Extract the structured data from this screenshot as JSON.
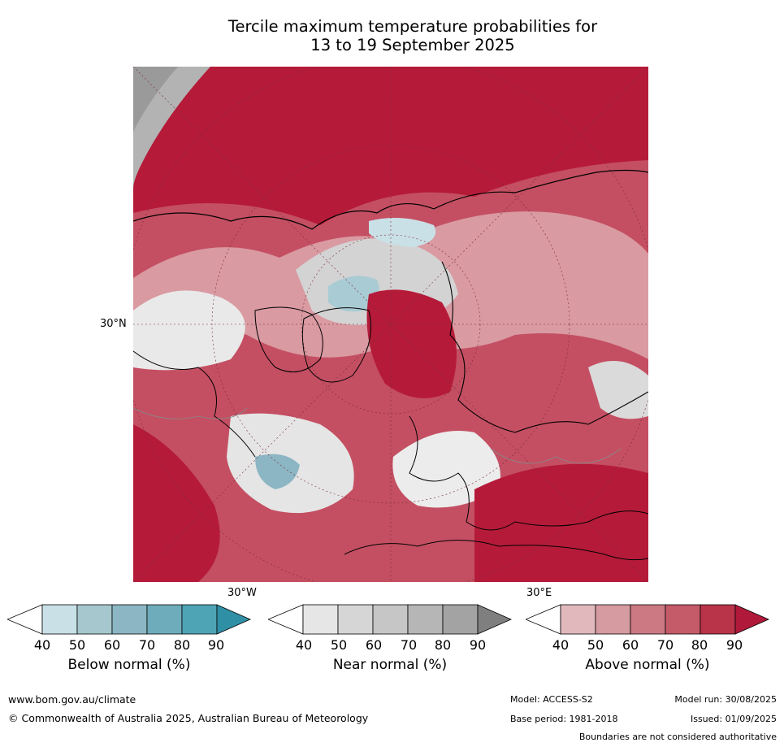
{
  "title": {
    "line1": "Tercile maximum temperature probabilities for",
    "line2": "13 to 19 September 2025"
  },
  "map": {
    "projection": "north-polar-stereographic",
    "lat_label": "30°N",
    "lon_label_west": "30°W",
    "lon_label_east": "30°E"
  },
  "colorbars": [
    {
      "label": "Below normal (%)",
      "ticks": [
        "40",
        "50",
        "60",
        "70",
        "80",
        "90"
      ],
      "colors": [
        "#ffffff",
        "#c8e0e6",
        "#a6c7ce",
        "#8cb6c3",
        "#6eacbb",
        "#4ea3b5",
        "#2f8fa5"
      ]
    },
    {
      "label": "Near normal (%)",
      "ticks": [
        "40",
        "50",
        "60",
        "70",
        "80",
        "90"
      ],
      "colors": [
        "#ffffff",
        "#e6e6e6",
        "#d6d6d6",
        "#c6c6c6",
        "#b6b6b6",
        "#a3a3a3",
        "#7f7f7f"
      ]
    },
    {
      "label": "Above normal (%)",
      "ticks": [
        "40",
        "50",
        "60",
        "70",
        "80",
        "90"
      ],
      "colors": [
        "#ffffff",
        "#e1b9bd",
        "#d69aa1",
        "#cc7983",
        "#c55a69",
        "#b93349",
        "#b0193a"
      ]
    }
  ],
  "footer": {
    "website": "www.bom.gov.au/climate",
    "copyright": "© Commonwealth of Australia 2025, Australian Bureau of Meteorology",
    "model": "Model: ACCESS-S2",
    "model_run": "Model run: 30/08/2025",
    "base_period": "Base period: 1981-2018",
    "issued": "Issued: 01/09/2025",
    "boundaries": "Boundaries are not considered authoritative"
  }
}
